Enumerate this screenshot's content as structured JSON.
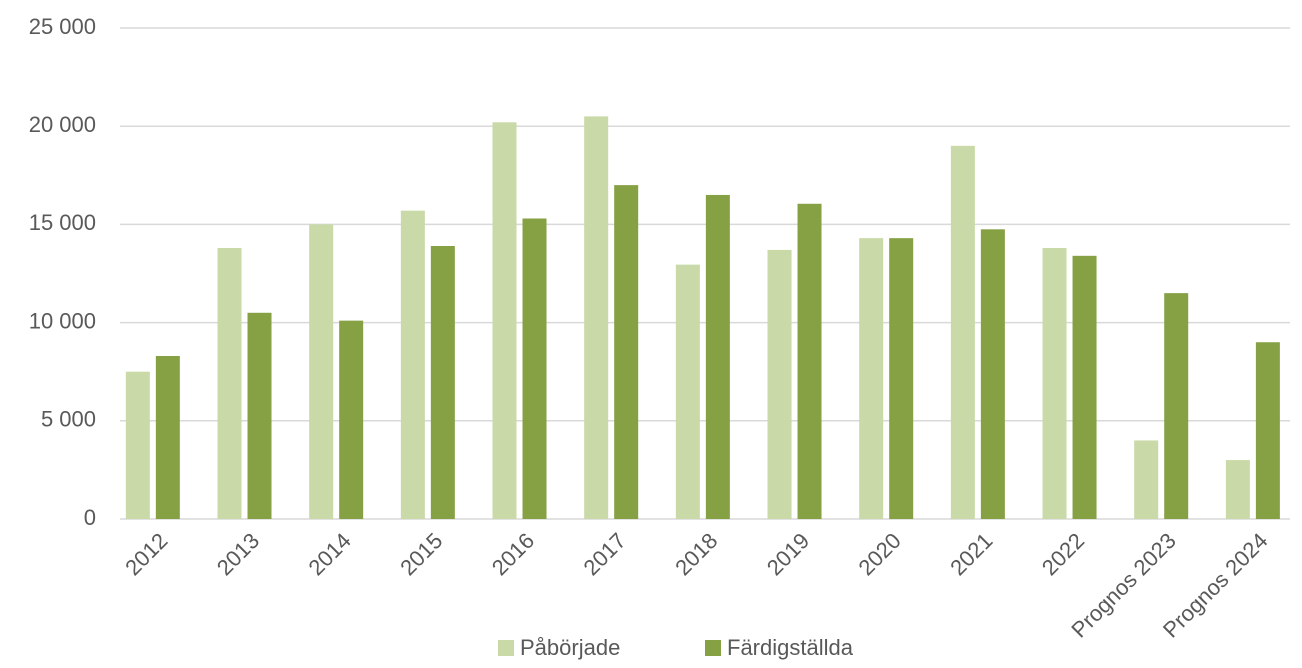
{
  "chart_data": {
    "type": "bar",
    "categories": [
      "2012",
      "2013",
      "2014",
      "2015",
      "2016",
      "2017",
      "2018",
      "2019",
      "2020",
      "2021",
      "2022",
      "Prognos 2023",
      "Prognos 2024"
    ],
    "series": [
      {
        "name": "Påbörjade",
        "color": "#c9d9a7",
        "values": [
          7500,
          13800,
          15000,
          15700,
          20200,
          20500,
          12950,
          13700,
          14300,
          19000,
          13800,
          4000,
          3000
        ]
      },
      {
        "name": "Färdigställda",
        "color": "#86a044",
        "values": [
          8300,
          10500,
          10100,
          13900,
          15300,
          17000,
          16500,
          16050,
          14300,
          14750,
          13400,
          11500,
          9000
        ]
      }
    ],
    "ylim": [
      0,
      25000
    ],
    "yticks": [
      0,
      {
        "value": 5000,
        "label": "5 000"
      },
      {
        "value": 10000,
        "label": "10 000"
      },
      {
        "value": 15000,
        "label": "15 000"
      },
      {
        "value": 20000,
        "label": "20 000"
      },
      {
        "value": 25000,
        "label": "25 000"
      }
    ],
    "grid": true,
    "legend": "bottom"
  }
}
